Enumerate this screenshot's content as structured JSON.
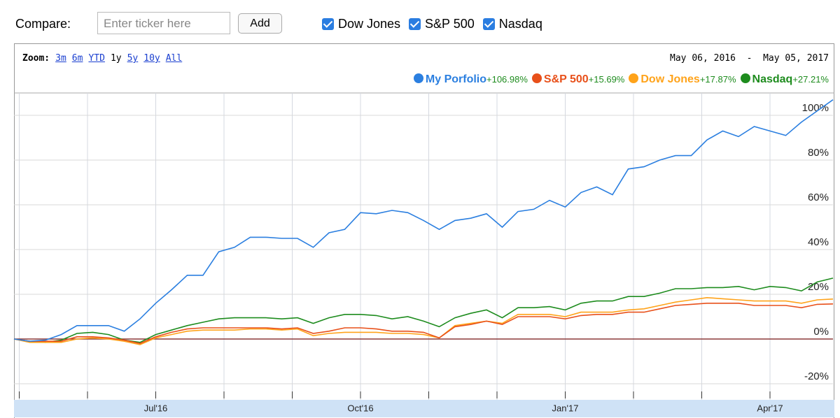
{
  "compare": {
    "label": "Compare:",
    "placeholder": "Enter ticker here",
    "button": "Add",
    "checkboxes": [
      {
        "label": "Dow Jones",
        "checked": true
      },
      {
        "label": "S&P 500",
        "checked": true
      },
      {
        "label": "Nasdaq",
        "checked": true
      }
    ]
  },
  "chart_data": {
    "type": "line",
    "zoom_label": "Zoom:",
    "zoom_options": [
      "3m",
      "6m",
      "YTD",
      "1y",
      "5y",
      "10y",
      "All"
    ],
    "zoom_selected": "1y",
    "date_range": [
      "May 06, 2016",
      "May 05, 2017"
    ],
    "date_range_separator": "-",
    "categories": [
      null,
      null,
      null,
      null,
      null,
      null,
      null,
      null,
      null,
      "Jul'16",
      null,
      null,
      null,
      null,
      null,
      null,
      null,
      null,
      null,
      null,
      null,
      null,
      "Oct'16",
      null,
      null,
      null,
      null,
      null,
      null,
      null,
      null,
      null,
      null,
      null,
      null,
      "Jan'17",
      null,
      null,
      null,
      null,
      null,
      null,
      null,
      null,
      null,
      null,
      null,
      null,
      "Apr'17",
      null,
      null,
      null,
      null
    ],
    "series": [
      {
        "name": "My Porfolio",
        "color": "#2b7fe0",
        "change": "+106.98%",
        "values": [
          0,
          -1,
          -0.5,
          2,
          6,
          6,
          6,
          3.5,
          9,
          16,
          22,
          28.5,
          28.5,
          39,
          41,
          45.5,
          45.5,
          45,
          45,
          41,
          47.5,
          49,
          56.5,
          56,
          57.5,
          56.5,
          53,
          49,
          53,
          54,
          56,
          50,
          57,
          58,
          62,
          59,
          65.5,
          68,
          64.5,
          76,
          77,
          80,
          82,
          82,
          89,
          93,
          90.5,
          95,
          93,
          91,
          97,
          102,
          106.98
        ]
      },
      {
        "name": "S&P 500",
        "color": "#e8501a",
        "change": "+15.69%",
        "values": [
          0,
          -1,
          -1,
          -1,
          1,
          1,
          0.5,
          -0.5,
          -2,
          1,
          3,
          4.5,
          5,
          5,
          5,
          5,
          5,
          4.5,
          5,
          2.5,
          3.5,
          5,
          5,
          4.5,
          3.5,
          3.5,
          3,
          0.5,
          5.5,
          6.5,
          8,
          6.5,
          10,
          10,
          10,
          9,
          10.5,
          11,
          11,
          12,
          12,
          13.5,
          15,
          15.5,
          16,
          16,
          16,
          15,
          15,
          15,
          14,
          15.5,
          15.69
        ]
      },
      {
        "name": "Dow Jones",
        "color": "#ffa31a",
        "change": "+17.87%",
        "values": [
          0,
          -1.5,
          -1.5,
          -1.5,
          0,
          0.5,
          0,
          -1,
          -2.5,
          0.5,
          2,
          3.5,
          4,
          4,
          4,
          4.5,
          4.5,
          4,
          4.5,
          1.5,
          2.5,
          3,
          3,
          3,
          2.5,
          2.5,
          2,
          0.5,
          6,
          7,
          8,
          7,
          11,
          11,
          11,
          10,
          12,
          12,
          12,
          13,
          13.5,
          15,
          16.5,
          17.5,
          18.5,
          18,
          17.5,
          17,
          17,
          17,
          16,
          17.5,
          17.87
        ]
      },
      {
        "name": "Nasdaq",
        "color": "#1e8c1e",
        "change": "+27.21%",
        "values": [
          0,
          -1,
          -1.5,
          -0.5,
          2.5,
          3,
          2,
          -0.5,
          -1.5,
          2,
          4,
          6,
          7.5,
          9,
          9.5,
          9.5,
          9.5,
          9,
          9.5,
          7,
          9.5,
          11,
          11,
          10.5,
          9,
          10,
          8,
          5.5,
          9.5,
          11.5,
          13,
          9.5,
          14,
          14,
          14.5,
          13,
          16,
          17,
          17,
          19,
          19,
          20.5,
          22.5,
          22.5,
          23,
          23,
          23.5,
          22,
          23.5,
          23,
          21.5,
          25.5,
          27.21
        ]
      }
    ],
    "change_color": "#1e8c1e",
    "zero_line_color": "#8b3a3a",
    "ylim": [
      -25,
      110
    ],
    "yticks": [
      {
        "value": -20,
        "label": "-20%"
      },
      {
        "value": 0,
        "label": "0%"
      },
      {
        "value": 20,
        "label": "20%"
      },
      {
        "value": 40,
        "label": "40%"
      },
      {
        "value": 60,
        "label": "60%"
      },
      {
        "value": 80,
        "label": "80%"
      },
      {
        "value": 100,
        "label": "100%"
      }
    ],
    "grid": true
  }
}
